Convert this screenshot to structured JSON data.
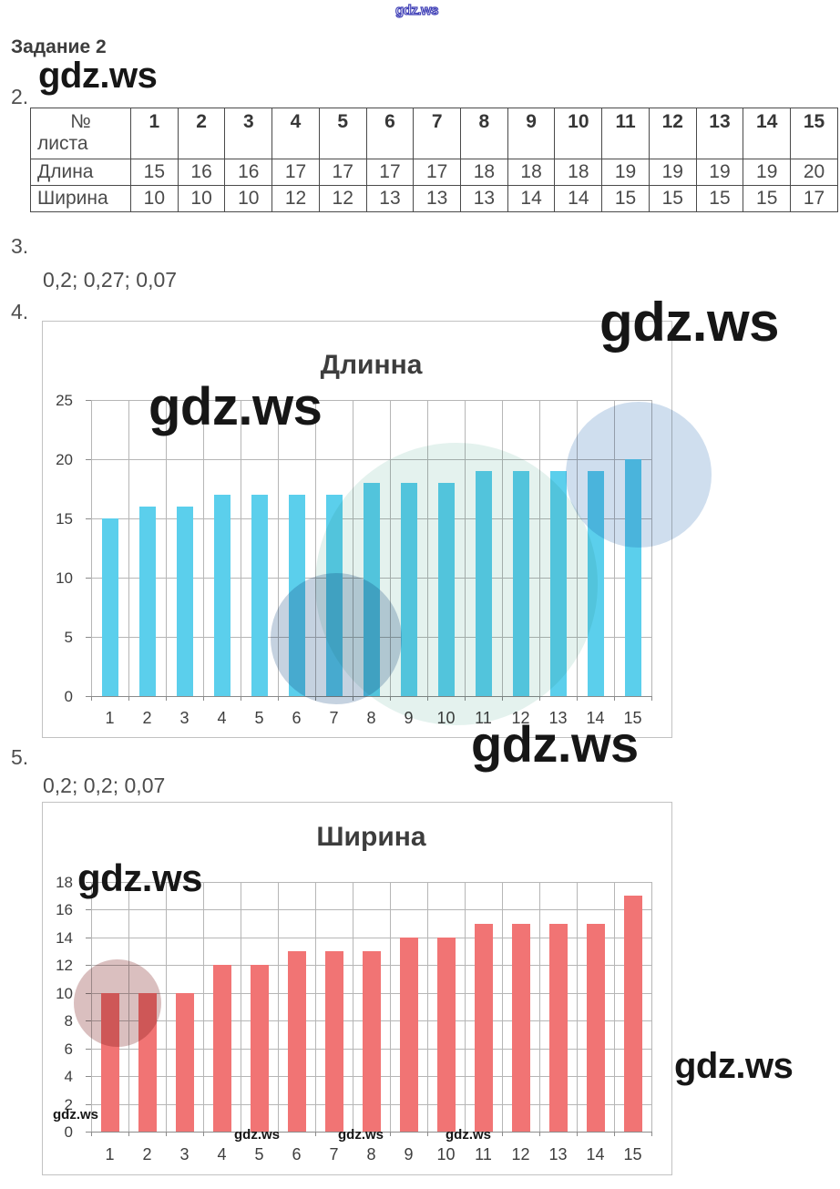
{
  "watermark": "gdz.ws",
  "header": {
    "title": "Задание 2"
  },
  "sections": {
    "item2_number": "2.",
    "item3_number": "3.",
    "item3_text": "0,2; 0,27; 0,07",
    "item4_number": "4.",
    "item5_number": "5.",
    "item5_text": "0,2; 0,2; 0,07"
  },
  "table": {
    "corner_line1": "№",
    "corner_line2": "листа",
    "columns": [
      "1",
      "2",
      "3",
      "4",
      "5",
      "6",
      "7",
      "8",
      "9",
      "10",
      "11",
      "12",
      "13",
      "14",
      "15"
    ],
    "rows": [
      {
        "label": "Длина",
        "values": [
          15,
          16,
          16,
          17,
          17,
          17,
          17,
          18,
          18,
          18,
          19,
          19,
          19,
          19,
          20
        ]
      },
      {
        "label": "Ширина",
        "values": [
          10,
          10,
          10,
          12,
          12,
          13,
          13,
          13,
          14,
          14,
          15,
          15,
          15,
          15,
          17
        ]
      }
    ]
  },
  "chart_data": [
    {
      "type": "bar",
      "title": "Длинна",
      "categories": [
        "1",
        "2",
        "3",
        "4",
        "5",
        "6",
        "7",
        "8",
        "9",
        "10",
        "11",
        "12",
        "13",
        "14",
        "15"
      ],
      "values": [
        15,
        16,
        16,
        17,
        17,
        17,
        17,
        18,
        18,
        18,
        19,
        19,
        19,
        19,
        20
      ],
      "xlabel": "",
      "ylabel": "",
      "ylim": [
        0,
        25
      ],
      "ytick_step": 5,
      "bar_color": "#5bcfec",
      "grid": true,
      "legend": false
    },
    {
      "type": "bar",
      "title": "Ширина",
      "categories": [
        "1",
        "2",
        "3",
        "4",
        "5",
        "6",
        "7",
        "8",
        "9",
        "10",
        "11",
        "12",
        "13",
        "14",
        "15"
      ],
      "values": [
        10,
        10,
        10,
        12,
        12,
        13,
        13,
        13,
        14,
        14,
        15,
        15,
        15,
        15,
        17
      ],
      "xlabel": "",
      "ylabel": "",
      "ylim": [
        0,
        18
      ],
      "ytick_step": 2,
      "bar_color": "#f17474",
      "grid": true,
      "legend": false
    }
  ]
}
